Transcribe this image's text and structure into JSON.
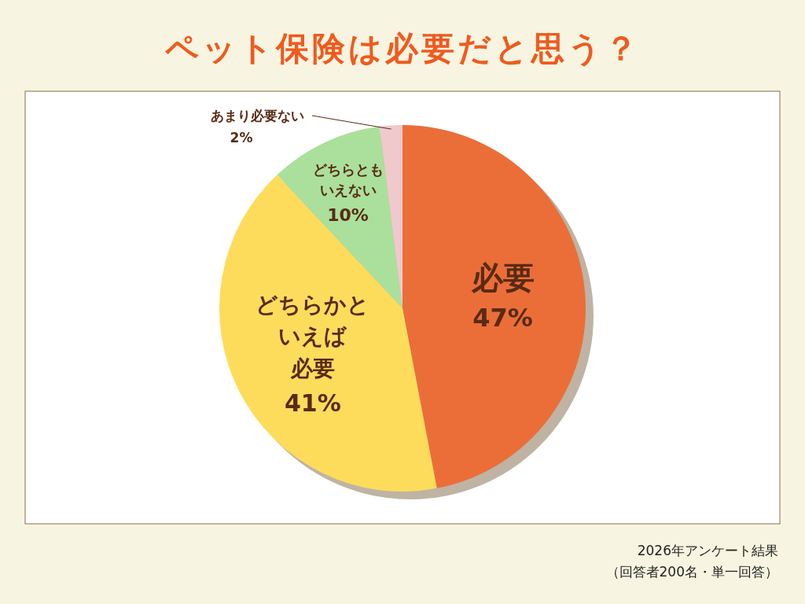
{
  "chart_data": {
    "type": "pie",
    "title": "ペット保険は必要だと思う？",
    "categories": [
      "必要",
      "どちらかといえば必要",
      "どちらともいえない",
      "あまり必要ない"
    ],
    "values": [
      47,
      41,
      10,
      2
    ],
    "value_labels": [
      "47%",
      "41%",
      "10%",
      "2%"
    ],
    "colors": [
      "#eb6e38",
      "#fddc5c",
      "#aae09c",
      "#f0c9cc"
    ],
    "annotations": [
      "2026年アンケート結果",
      "（回答者200名・単一回答）"
    ]
  }
}
